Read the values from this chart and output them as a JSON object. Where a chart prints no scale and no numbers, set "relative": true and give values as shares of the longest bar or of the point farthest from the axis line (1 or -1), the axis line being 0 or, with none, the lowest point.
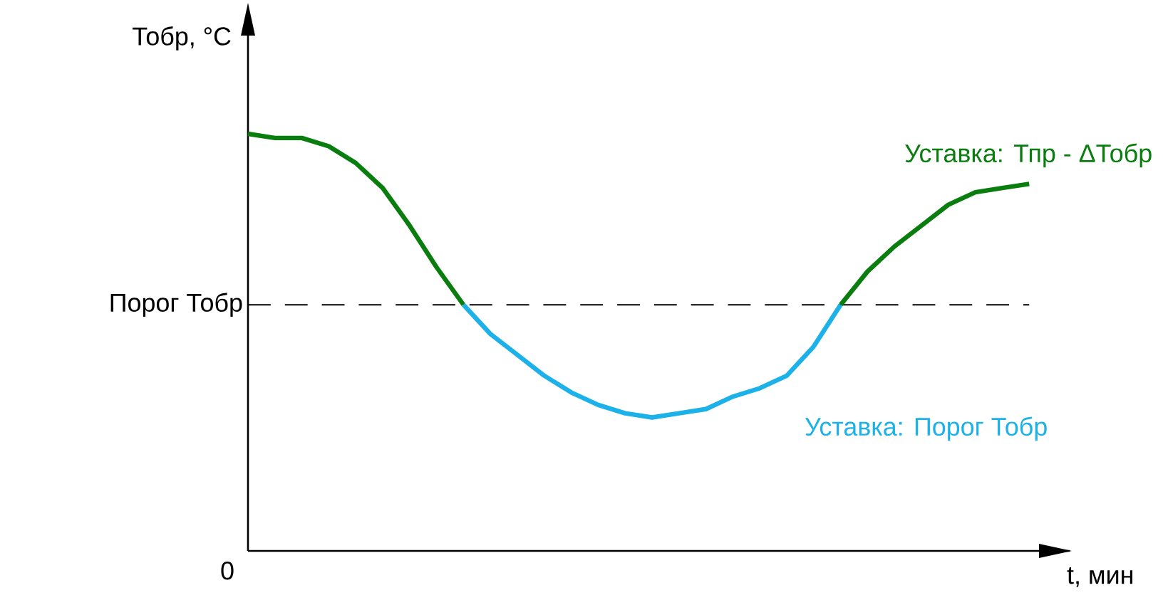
{
  "chart_data": {
    "type": "line",
    "relative": true,
    "xlabel": "t, мин",
    "ylabel": "Тобр, °C",
    "categories": [
      null,
      null,
      null,
      null,
      null,
      null,
      null,
      null,
      null,
      null,
      null,
      null,
      null,
      null,
      null,
      null,
      null,
      null,
      null,
      null,
      null,
      null,
      null,
      null,
      null,
      null,
      null,
      null,
      null,
      null
    ],
    "series": [
      {
        "name": "Уставка: Тпр - ΔТобр",
        "color": "#0a7d0f",
        "values": [
          1.0,
          0.99,
          0.99,
          0.97,
          0.93,
          0.87,
          0.78,
          0.68,
          0.59,
          null,
          null,
          null,
          null,
          null,
          null,
          null,
          null,
          null,
          null,
          null,
          null,
          null,
          0.59,
          0.67,
          0.73,
          0.78,
          0.83,
          0.86,
          0.87,
          0.88
        ]
      },
      {
        "name": "Уставка: Порог Тобр",
        "color": "#1cb1e9",
        "values": [
          null,
          null,
          null,
          null,
          null,
          null,
          null,
          null,
          0.59,
          0.52,
          0.47,
          0.42,
          0.38,
          0.35,
          0.33,
          0.32,
          0.33,
          0.34,
          0.37,
          0.39,
          0.42,
          0.49,
          0.59,
          null,
          null,
          null,
          null,
          null,
          null,
          null
        ]
      }
    ],
    "ref_lines": [
      {
        "axis": "y",
        "value": 0.59,
        "label": "Порог Тобр",
        "color": "#000000",
        "line_style": "dashed"
      }
    ],
    "annotations": [
      "0"
    ]
  }
}
